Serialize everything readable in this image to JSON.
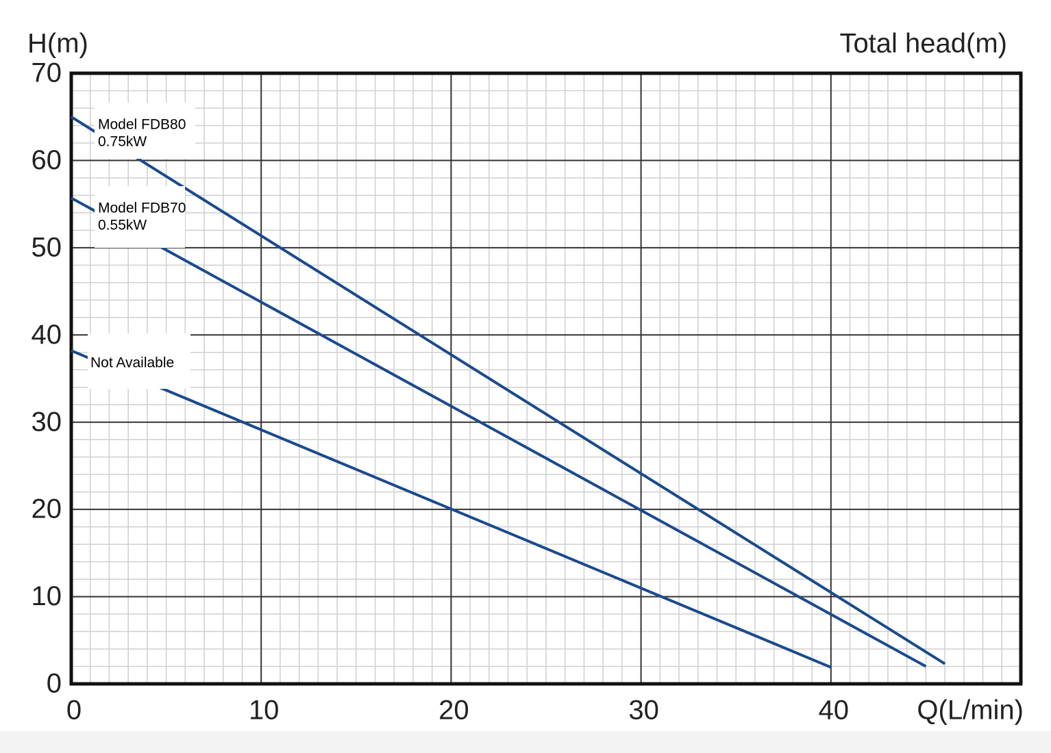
{
  "chart_data": {
    "type": "line",
    "y_axis_label": "H(m)",
    "title": "Total head(m)",
    "x_axis_label": "Q(L/min)",
    "xlim": [
      0,
      50
    ],
    "ylim": [
      0,
      70
    ],
    "xticks": [
      0,
      10,
      20,
      30,
      40
    ],
    "yticks": [
      0,
      10,
      20,
      30,
      40,
      50,
      60,
      70
    ],
    "grid": true,
    "minor_grid": true,
    "series": [
      {
        "name": "Model FDB80",
        "power": "0.75kW",
        "color": "#1b4a8c",
        "x": [
          0,
          46
        ],
        "values": [
          65,
          2.3
        ]
      },
      {
        "name": "Model FDB70",
        "power": "0.55kW",
        "color": "#1b4a8c",
        "x": [
          0,
          45
        ],
        "values": [
          55.7,
          2.0
        ]
      },
      {
        "name": "Not Available",
        "color": "#1b4a8c",
        "x": [
          0,
          40
        ],
        "values": [
          38.2,
          1.9
        ]
      }
    ]
  }
}
